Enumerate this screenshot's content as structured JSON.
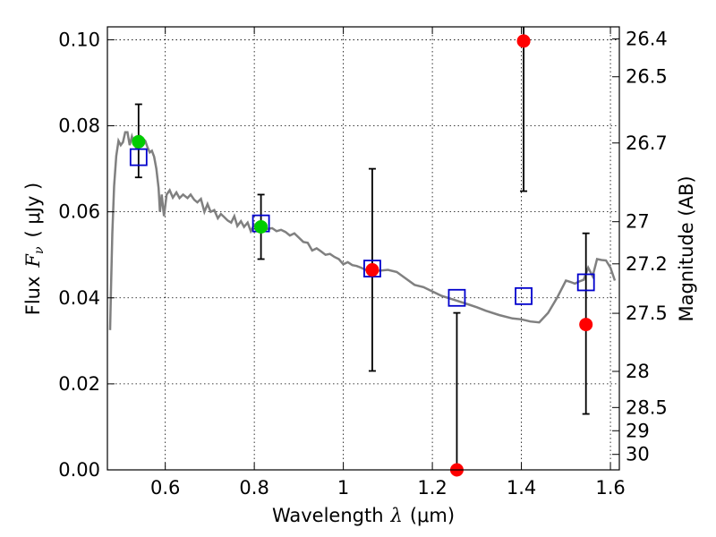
{
  "chart_data": {
    "type": "scatter",
    "title": "",
    "xlabel": "Wavelength",
    "xlabel_symbol": "λ",
    "xlabel_unit": "(μm)",
    "ylabel": "Flux",
    "ylabel_symbol": "F",
    "ylabel_symbol_sub": "ν",
    "ylabel_unit": "( μJy )",
    "y2label": "Magnitude (AB)",
    "xlim": [
      0.47,
      1.62
    ],
    "ylim": [
      0.0,
      0.103
    ],
    "grid": true,
    "x_ticks": [
      0.6,
      0.8,
      1.0,
      1.2,
      1.4,
      1.6
    ],
    "x_tick_labels": [
      "0.6",
      "0.8",
      "1",
      "1.2",
      "1.4",
      "1.6"
    ],
    "y_ticks": [
      0.0,
      0.02,
      0.04,
      0.06,
      0.08,
      0.1
    ],
    "y_tick_labels": [
      "0.00",
      "0.02",
      "0.04",
      "0.06",
      "0.08",
      "0.10"
    ],
    "y2_ticks": [
      {
        "label": "26.4",
        "flux": 0.1002
      },
      {
        "label": "26.5",
        "flux": 0.0914
      },
      {
        "label": "26.7",
        "flux": 0.076
      },
      {
        "label": "27",
        "flux": 0.0577
      },
      {
        "label": "27.2",
        "flux": 0.0479
      },
      {
        "label": "27.5",
        "flux": 0.0364
      },
      {
        "label": "28",
        "flux": 0.0229
      },
      {
        "label": "28.5",
        "flux": 0.0145
      },
      {
        "label": "29",
        "flux": 0.0091
      },
      {
        "label": "30",
        "flux": 0.0036
      }
    ],
    "series": [
      {
        "marker": "circle",
        "color": "#00cc00",
        "points": [
          {
            "x": 0.54,
            "y": 0.0763,
            "err_low": 0.068,
            "err_high": 0.085
          },
          {
            "x": 0.815,
            "y": 0.0565,
            "err_low": 0.049,
            "err_high": 0.064
          }
        ]
      },
      {
        "marker": "circle",
        "color": "#ff0000",
        "points": [
          {
            "x": 1.065,
            "y": 0.0465,
            "err_low": 0.023,
            "err_high": 0.07
          },
          {
            "x": 1.255,
            "y": 0.0,
            "err_low": 0.0,
            "err_high": 0.0365
          },
          {
            "x": 1.405,
            "y": 0.0997,
            "err_low": 0.0648,
            "err_high": 0.103
          },
          {
            "x": 1.545,
            "y": 0.0338,
            "err_low": 0.013,
            "err_high": 0.055
          }
        ]
      },
      {
        "marker": "open-square",
        "color": "#0000cc",
        "points": [
          {
            "x": 0.54,
            "y": 0.0727
          },
          {
            "x": 0.815,
            "y": 0.0573
          },
          {
            "x": 1.065,
            "y": 0.0468
          },
          {
            "x": 1.255,
            "y": 0.04
          },
          {
            "x": 1.405,
            "y": 0.0404
          },
          {
            "x": 1.545,
            "y": 0.0436
          }
        ]
      },
      {
        "marker": "line",
        "color": "#808080",
        "points": [
          [
            0.476,
            0.0325
          ],
          [
            0.478,
            0.042
          ],
          [
            0.481,
            0.055
          ],
          [
            0.485,
            0.066
          ],
          [
            0.49,
            0.073
          ],
          [
            0.495,
            0.0765
          ],
          [
            0.5,
            0.0755
          ],
          [
            0.505,
            0.0762
          ],
          [
            0.51,
            0.0785
          ],
          [
            0.515,
            0.0785
          ],
          [
            0.52,
            0.0755
          ],
          [
            0.525,
            0.0775
          ],
          [
            0.53,
            0.076
          ],
          [
            0.535,
            0.0748
          ],
          [
            0.54,
            0.0752
          ],
          [
            0.545,
            0.0775
          ],
          [
            0.55,
            0.077
          ],
          [
            0.555,
            0.0765
          ],
          [
            0.56,
            0.075
          ],
          [
            0.565,
            0.0738
          ],
          [
            0.57,
            0.0742
          ],
          [
            0.575,
            0.0728
          ],
          [
            0.58,
            0.07
          ],
          [
            0.585,
            0.0655
          ],
          [
            0.588,
            0.06
          ],
          [
            0.592,
            0.064
          ],
          [
            0.597,
            0.059
          ],
          [
            0.603,
            0.064
          ],
          [
            0.61,
            0.065
          ],
          [
            0.617,
            0.0633
          ],
          [
            0.625,
            0.0645
          ],
          [
            0.632,
            0.0632
          ],
          [
            0.64,
            0.064
          ],
          [
            0.65,
            0.0632
          ],
          [
            0.657,
            0.064
          ],
          [
            0.665,
            0.0628
          ],
          [
            0.672,
            0.0622
          ],
          [
            0.68,
            0.063
          ],
          [
            0.688,
            0.06
          ],
          [
            0.695,
            0.0618
          ],
          [
            0.702,
            0.06
          ],
          [
            0.71,
            0.0604
          ],
          [
            0.718,
            0.0585
          ],
          [
            0.725,
            0.0595
          ],
          [
            0.732,
            0.0588
          ],
          [
            0.74,
            0.058
          ],
          [
            0.748,
            0.0575
          ],
          [
            0.755,
            0.059
          ],
          [
            0.762,
            0.0567
          ],
          [
            0.77,
            0.0578
          ],
          [
            0.777,
            0.0565
          ],
          [
            0.785,
            0.0575
          ],
          [
            0.792,
            0.0555
          ],
          [
            0.8,
            0.057
          ],
          [
            0.808,
            0.056
          ],
          [
            0.815,
            0.0565
          ],
          [
            0.822,
            0.0568
          ],
          [
            0.83,
            0.056
          ],
          [
            0.84,
            0.0562
          ],
          [
            0.85,
            0.0555
          ],
          [
            0.86,
            0.0558
          ],
          [
            0.87,
            0.0553
          ],
          [
            0.88,
            0.0545
          ],
          [
            0.89,
            0.055
          ],
          [
            0.9,
            0.054
          ],
          [
            0.91,
            0.053
          ],
          [
            0.92,
            0.0528
          ],
          [
            0.93,
            0.051
          ],
          [
            0.94,
            0.0515
          ],
          [
            0.95,
            0.0508
          ],
          [
            0.96,
            0.05
          ],
          [
            0.97,
            0.0502
          ],
          [
            0.98,
            0.0495
          ],
          [
            0.99,
            0.049
          ],
          [
            1.0,
            0.0478
          ],
          [
            1.01,
            0.0483
          ],
          [
            1.02,
            0.0476
          ],
          [
            1.03,
            0.0474
          ],
          [
            1.04,
            0.047
          ],
          [
            1.05,
            0.0465
          ],
          [
            1.065,
            0.0468
          ],
          [
            1.08,
            0.0463
          ],
          [
            1.1,
            0.0465
          ],
          [
            1.12,
            0.046
          ],
          [
            1.14,
            0.0445
          ],
          [
            1.16,
            0.043
          ],
          [
            1.18,
            0.0425
          ],
          [
            1.2,
            0.0415
          ],
          [
            1.22,
            0.0405
          ],
          [
            1.25,
            0.0395
          ],
          [
            1.28,
            0.0385
          ],
          [
            1.3,
            0.0378
          ],
          [
            1.32,
            0.037
          ],
          [
            1.35,
            0.036
          ],
          [
            1.38,
            0.0352
          ],
          [
            1.4,
            0.035
          ],
          [
            1.42,
            0.0345
          ],
          [
            1.44,
            0.0343
          ],
          [
            1.46,
            0.0365
          ],
          [
            1.48,
            0.04
          ],
          [
            1.5,
            0.044
          ],
          [
            1.51,
            0.0437
          ],
          [
            1.52,
            0.0433
          ],
          [
            1.53,
            0.0438
          ],
          [
            1.54,
            0.0442
          ],
          [
            1.55,
            0.047
          ],
          [
            1.56,
            0.045
          ],
          [
            1.57,
            0.049
          ],
          [
            1.58,
            0.0488
          ],
          [
            1.59,
            0.0487
          ],
          [
            1.6,
            0.047
          ],
          [
            1.61,
            0.044
          ]
        ]
      }
    ]
  }
}
